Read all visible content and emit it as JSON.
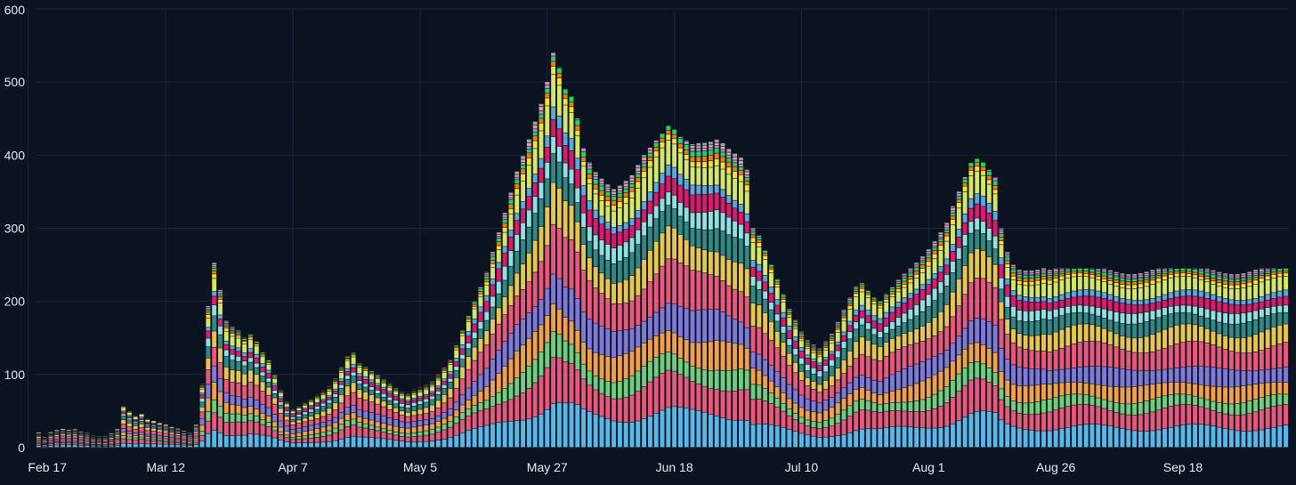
{
  "chart_data": {
    "type": "bar",
    "stacked": true,
    "title": "",
    "xlabel": "",
    "ylabel": "",
    "ylim": [
      0,
      600
    ],
    "yticks": [
      0,
      100,
      200,
      300,
      400,
      500,
      600
    ],
    "x_tick_labels": [
      "Feb 17",
      "Mar 12",
      "Apr 7",
      "May 5",
      "May 27",
      "Jun 18",
      "Jul 10",
      "Aug 1",
      "Aug 26",
      "Sep 18"
    ],
    "x_tick_bar_index": [
      0,
      21,
      42,
      63,
      84,
      105,
      126,
      147,
      168,
      189
    ],
    "grid": true,
    "legend": "none",
    "bar_count": 210,
    "series_colors": [
      "#5ab8e8",
      "#e8587a",
      "#6fce7c",
      "#f0a04b",
      "#7f7ad8",
      "#e8587a",
      "#e6c651",
      "#2f8a84",
      "#8fe0de",
      "#e0186e",
      "#5aa8e0",
      "#d4e56a",
      "#f5e13a",
      "#f07b1c",
      "#19d85a",
      "#b986e0",
      "#e0a0a0",
      "#9aa3a8"
    ],
    "totals": [
      22,
      15,
      22,
      25,
      27,
      26,
      27,
      24,
      22,
      18,
      17,
      18,
      22,
      28,
      60,
      52,
      45,
      48,
      40,
      38,
      35,
      33,
      30,
      28,
      25,
      22,
      35,
      90,
      200,
      260,
      220,
      175,
      165,
      160,
      150,
      155,
      145,
      130,
      120,
      100,
      80,
      65,
      55,
      60,
      65,
      70,
      75,
      80,
      85,
      95,
      110,
      125,
      130,
      115,
      110,
      105,
      100,
      95,
      90,
      85,
      80,
      78,
      82,
      85,
      88,
      92,
      100,
      110,
      120,
      140,
      160,
      180,
      200,
      220,
      240,
      270,
      300,
      330,
      360,
      390,
      410,
      430,
      450,
      470,
      500,
      540,
      520,
      490,
      480,
      450,
      410,
      390,
      380,
      375,
      370,
      365,
      370,
      375,
      380,
      390,
      400,
      410,
      420,
      430,
      440,
      435,
      425,
      420,
      415,
      420,
      425,
      430,
      435,
      430,
      420,
      410,
      400,
      380,
      300,
      290,
      270,
      250,
      230,
      210,
      190,
      175,
      160,
      150,
      145,
      140,
      150,
      160,
      175,
      190,
      205,
      220,
      225,
      215,
      205,
      200,
      210,
      220,
      230,
      240,
      250,
      260,
      270,
      280,
      290,
      300,
      310,
      330,
      350,
      370,
      390,
      395,
      390,
      380,
      370,
      300,
      270,
      255,
      250,
      250,
      250,
      250,
      250,
      245,
      245,
      245,
      245,
      245,
      245,
      245,
      245,
      245,
      245,
      245,
      245,
      245,
      245,
      245,
      245,
      245,
      245,
      245,
      245,
      245,
      245,
      245,
      245,
      245,
      245,
      245,
      245,
      245,
      245,
      245,
      245,
      245,
      245,
      245,
      245,
      245,
      245,
      245,
      245
    ]
  }
}
